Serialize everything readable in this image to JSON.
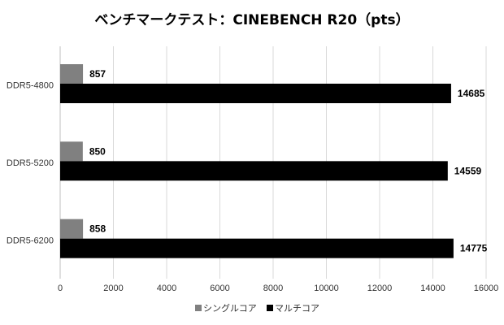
{
  "chart_data": {
    "type": "bar",
    "orientation": "horizontal",
    "title": "ベンチマークテスト：CINEBENCH R20（pts）",
    "categories": [
      "DDR5-4800",
      "DDR5-5200",
      "DDR5-6200"
    ],
    "series": [
      {
        "name": "シングルコア",
        "values": [
          857,
          850,
          858
        ],
        "color": "#808080"
      },
      {
        "name": "マルチコア",
        "values": [
          14685,
          14559,
          14775
        ],
        "color": "#000000"
      }
    ],
    "xlim": [
      0,
      16000
    ],
    "xticks": [
      0,
      2000,
      4000,
      6000,
      8000,
      10000,
      12000,
      14000,
      16000
    ],
    "grid": true,
    "legend_position": "bottom"
  }
}
